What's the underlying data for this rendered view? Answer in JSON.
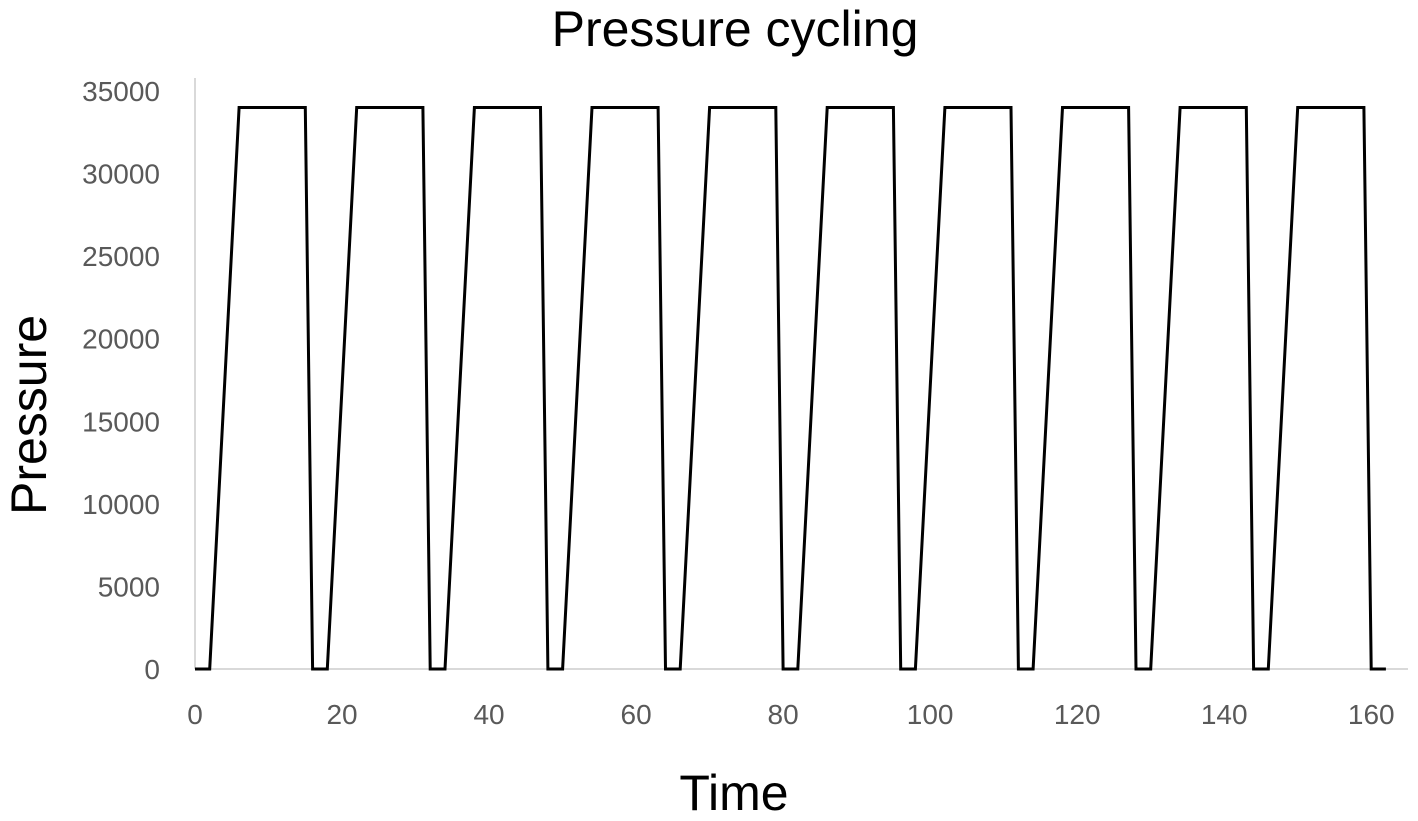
{
  "chart_data": {
    "type": "line",
    "title": "Pressure cycling",
    "xlabel": "Time",
    "ylabel": "Pressure",
    "xlim": [
      0,
      165
    ],
    "ylim": [
      0,
      35000
    ],
    "xticks": [
      0,
      20,
      40,
      60,
      80,
      100,
      120,
      140,
      160
    ],
    "yticks": [
      0,
      5000,
      10000,
      15000,
      20000,
      25000,
      30000,
      35000
    ],
    "grid": false,
    "legend": "none",
    "line_color": "#000000",
    "axis_color": "#d9d9d9",
    "series": [
      {
        "x": [
          0,
          2,
          6,
          15,
          16,
          18,
          22,
          31,
          32,
          34,
          38,
          47,
          48,
          50,
          54,
          63,
          64,
          66,
          70,
          79,
          80,
          82,
          86,
          95,
          96,
          98,
          102,
          111,
          112,
          114,
          118,
          127,
          128,
          130,
          134,
          143,
          144,
          146,
          150,
          159,
          160,
          162
        ],
        "y": [
          0,
          0,
          34000,
          34000,
          0,
          0,
          34000,
          34000,
          0,
          0,
          34000,
          34000,
          0,
          0,
          34000,
          34000,
          0,
          0,
          34000,
          34000,
          0,
          0,
          34000,
          34000,
          0,
          0,
          34000,
          34000,
          0,
          0,
          34000,
          34000,
          0,
          0,
          34000,
          34000,
          0,
          0,
          34000,
          34000,
          0,
          0
        ]
      }
    ]
  }
}
